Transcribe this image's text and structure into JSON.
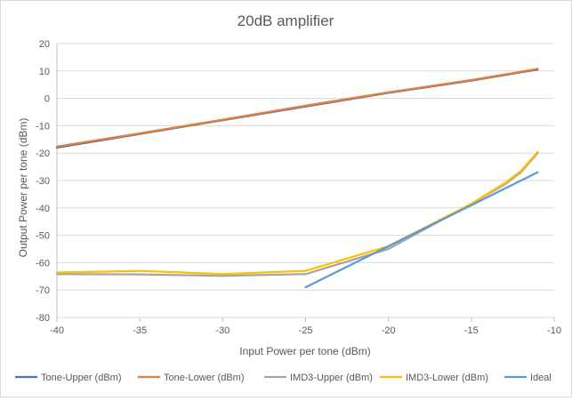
{
  "chart_data": {
    "type": "line",
    "title": "20dB amplifier",
    "xlabel": "Input Power per tone (dBm)",
    "ylabel": "Output Power per tone (dBm)",
    "xlim": [
      -40,
      -10
    ],
    "ylim": [
      -80,
      20
    ],
    "xticks": [
      -40,
      -35,
      -30,
      -25,
      -20,
      -15,
      -10
    ],
    "yticks": [
      20,
      10,
      0,
      -10,
      -20,
      -30,
      -40,
      -50,
      -60,
      -70,
      -80
    ],
    "grid": "horizontal",
    "legend_position": "bottom",
    "series": [
      {
        "name": "Tone-Upper (dBm)",
        "color": "#4472c4",
        "x": [
          -40,
          -35,
          -30,
          -25,
          -20,
          -15,
          -12,
          -11
        ],
        "y": [
          -18,
          -13,
          -8,
          -3,
          2,
          6.5,
          9.5,
          10.5
        ]
      },
      {
        "name": "Tone-Lower (dBm)",
        "color": "#ed7d31",
        "x": [
          -40,
          -35,
          -30,
          -25,
          -20,
          -15,
          -12,
          -11
        ],
        "y": [
          -17.6,
          -12.8,
          -7.8,
          -2.7,
          2.2,
          6.7,
          9.7,
          10.8
        ]
      },
      {
        "name": "IMD3-Upper (dBm)",
        "color": "#a5a5a5",
        "x": [
          -40,
          -35,
          -30,
          -25,
          -20,
          -15,
          -13,
          -12,
          -11
        ],
        "y": [
          -64.2,
          -64.3,
          -64.8,
          -64.2,
          -55,
          -38.5,
          -31.5,
          -27,
          -20
        ]
      },
      {
        "name": "IMD3-Lower (dBm)",
        "color": "#ffc000",
        "x": [
          -40,
          -35,
          -30,
          -25,
          -20,
          -15,
          -13,
          -12,
          -11
        ],
        "y": [
          -63.6,
          -63,
          -64.2,
          -63,
          -54,
          -38.5,
          -31,
          -26.5,
          -19.5
        ]
      },
      {
        "name": "Ideal",
        "color": "#5b9bd5",
        "x": [
          -25,
          -11
        ],
        "y": [
          -69,
          -27
        ]
      }
    ]
  }
}
